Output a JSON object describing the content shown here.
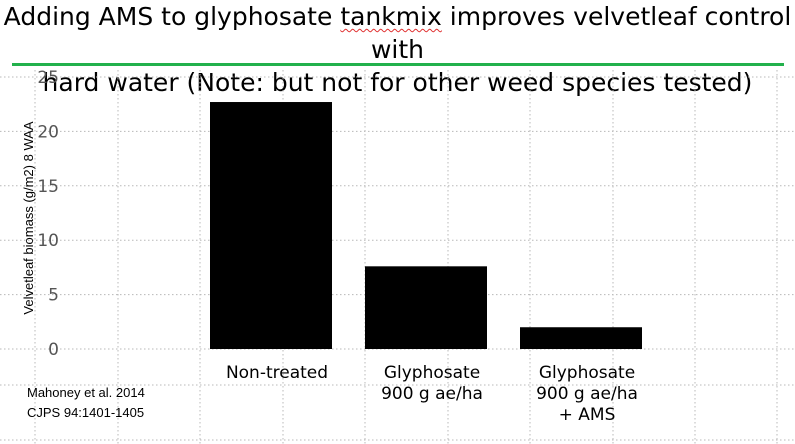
{
  "slide": {
    "title_part1": "Adding AMS to glyphosate ",
    "title_flagged_word": "tankmix",
    "title_part2": " improves velvetleaf control with",
    "title_line2": "hard water (Note: but not for other weed species tested)",
    "rule_color": "#22b14c",
    "citation_line1": "Mahoney et al. 2014",
    "citation_line2": "CJPS 94:1401-1405"
  },
  "chart_data": {
    "type": "bar",
    "categories": [
      [
        "Non-treated"
      ],
      [
        "Glyphosate",
        "900 g ae/ha"
      ],
      [
        "Glyphosate",
        "900 g ae/ha",
        "+ AMS"
      ]
    ],
    "values": [
      22.7,
      7.6,
      2.0
    ],
    "ylabel": "Velvetleaf biomass (g/m2) 8 WAA",
    "ylim": [
      0,
      25
    ],
    "yticks": [
      0,
      5,
      10,
      15,
      20,
      25
    ],
    "grid": "dotted",
    "bar_color": "#000000",
    "legend": "none"
  }
}
